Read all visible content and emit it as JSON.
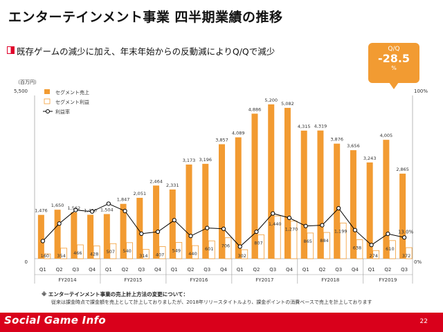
{
  "page": {
    "title": "エンターテインメント事業 四半期業績の推移",
    "subtitle": "既存ゲームの減少に加え、年末年始からの反動減によりQ/Qで減少",
    "qq": {
      "label": "Q/Q",
      "value": "-28.5",
      "unit": "%"
    },
    "note_title": "※ エンターテインメント事業の売上計上方法の変更について：",
    "note_body": "従来は課金時点で課金額を売上として計上しておりましたが、2018年リリースタイトルより、課金ポイントの消費ベースで売上を計上しております",
    "page_number": "22",
    "footer_logo": "Social Game Info",
    "colors": {
      "bar_sales": "#f29b32",
      "bar_profit_border": "#f29b32",
      "line": "#000000",
      "footer": "#d9001b"
    }
  },
  "chart_data": {
    "type": "bar",
    "unit_label": "（百万円）",
    "y_left_ticks": [
      "5,500",
      "0"
    ],
    "y_right_ticks": [
      "100%",
      "0%"
    ],
    "ylim": [
      0,
      5500
    ],
    "y2lim": [
      0,
      100
    ],
    "legend": [
      "セグメント売上",
      "セグメント利益",
      "利益率"
    ],
    "categories": [
      "Q1",
      "Q2",
      "Q3",
      "Q4",
      "Q1",
      "Q2",
      "Q3",
      "Q4",
      "Q1",
      "Q2",
      "Q3",
      "Q4",
      "Q1",
      "Q2",
      "Q3",
      "Q4",
      "Q1",
      "Q2",
      "Q3",
      "Q4",
      "Q1",
      "Q2",
      "Q3"
    ],
    "fiscal_years": [
      {
        "label": "FY2014",
        "count": 4
      },
      {
        "label": "FY2015",
        "count": 4
      },
      {
        "label": "FY2016",
        "count": 4
      },
      {
        "label": "FY2017",
        "count": 4
      },
      {
        "label": "FY2018",
        "count": 4
      },
      {
        "label": "FY2019",
        "count": 3
      }
    ],
    "series": [
      {
        "name": "セグメント売上",
        "values": [
          1476,
          1650,
          1562,
          1480,
          1504,
          1847,
          2051,
          2464,
          2331,
          3173,
          3196,
          3857,
          4089,
          4886,
          5200,
          5082,
          4315,
          4319,
          3876,
          3656,
          3243,
          4005,
          2865
        ],
        "labels": [
          "1,476",
          "1,650",
          "1,562",
          "1,480",
          "1,504",
          "1,847",
          "2,051",
          "2,464",
          "2,331",
          "3,173",
          "3,196",
          "3,857",
          "4,089",
          "4,886",
          "5,200",
          "5,082",
          "4,315",
          "4,319",
          "3,876",
          "3,656",
          "3,243",
          "4,005",
          "2,865"
        ]
      },
      {
        "name": "セグメント利益",
        "values": [
          160,
          354,
          466,
          428,
          507,
          540,
          314,
          407,
          549,
          440,
          601,
          706,
          302,
          807,
          1440,
          1270,
          865,
          884,
          1199,
          638,
          274,
          610,
          372
        ],
        "labels": [
          "160",
          "354",
          "466",
          "428",
          "507",
          "540",
          "314",
          "407",
          "549",
          "440",
          "601",
          "706",
          "302",
          "807",
          "1,440",
          "1,270",
          "865",
          "884",
          "1,199",
          "638",
          "274",
          "610",
          "372"
        ]
      },
      {
        "name": "利益率",
        "values": [
          10.8,
          21.5,
          29.8,
          28.9,
          33.7,
          29.2,
          15.3,
          16.5,
          23.6,
          13.9,
          18.8,
          18.3,
          7.4,
          16.5,
          27.7,
          25.0,
          20.0,
          20.5,
          30.9,
          17.5,
          8.4,
          15.2,
          13.0
        ],
        "labels": [
          "",
          "",
          "",
          "",
          "",
          "",
          "",
          "",
          "",
          "",
          "",
          "",
          "",
          "",
          "",
          "",
          "",
          "",
          "",
          "",
          "",
          "",
          "13.0%"
        ]
      }
    ]
  }
}
